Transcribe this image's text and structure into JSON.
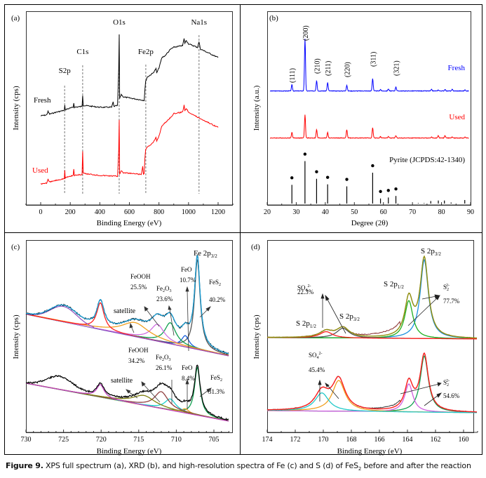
{
  "caption": {
    "label": "Figure 9.",
    "text_before_sub": " XPS full spectrum (a), XRD (b), and high-resolution spectra of Fe (c) and S (d) of FeS",
    "sub": "2",
    "text_after_sub": " before and after the reaction"
  },
  "colors": {
    "fresh_xps": "#000000",
    "used_xps": "#ff0000",
    "fresh_xrd": "#0000ff",
    "used_xrd": "#ff0000",
    "reference": "#000000"
  },
  "chart_data": [
    {
      "panel": "(a)",
      "type": "line",
      "title": "",
      "xlabel": "Binding Energy (eV)",
      "ylabel": "Intensity (cps)",
      "xlim": [
        -100,
        1300
      ],
      "xticks": [
        0,
        200,
        400,
        600,
        800,
        1000,
        1200
      ],
      "grid": false,
      "reference_lines": [
        {
          "label": "S2p",
          "x": 162
        },
        {
          "label": "C1s",
          "x": 284
        },
        {
          "label": "O1s",
          "x": 531
        },
        {
          "label": "Fe2p",
          "x": 711
        },
        {
          "label": "Na1s",
          "x": 1071
        }
      ],
      "series": [
        {
          "name": "Fresh",
          "color": "#000000",
          "x": [
            0,
            40,
            50,
            60,
            100,
            150,
            160,
            163,
            166,
            180,
            220,
            224,
            228,
            280,
            284,
            288,
            300,
            400,
            480,
            490,
            495,
            520,
            528,
            531,
            534,
            545,
            560,
            700,
            705,
            710,
            720,
            760,
            780,
            785,
            800,
            820,
            840,
            880,
            900,
            960,
            970,
            975,
            985,
            1000,
            1060,
            1071,
            1080,
            1200
          ],
          "y": [
            0.0,
            0.01,
            0.05,
            0.02,
            0.04,
            0.06,
            0.06,
            0.13,
            0.07,
            0.08,
            0.1,
            0.15,
            0.1,
            0.11,
            0.24,
            0.12,
            0.12,
            0.1,
            0.1,
            0.16,
            0.11,
            0.12,
            0.55,
            0.95,
            0.2,
            0.25,
            0.22,
            0.18,
            0.3,
            0.4,
            0.45,
            0.5,
            0.55,
            0.5,
            0.56,
            0.68,
            0.7,
            0.78,
            0.8,
            0.82,
            0.9,
            0.85,
            0.88,
            0.84,
            0.8,
            0.86,
            0.78,
            0.68
          ]
        },
        {
          "name": "Used",
          "color": "#ff0000",
          "x": [
            0,
            40,
            50,
            60,
            100,
            150,
            160,
            163,
            166,
            180,
            220,
            224,
            228,
            280,
            284,
            288,
            300,
            400,
            520,
            528,
            531,
            534,
            545,
            560,
            680,
            690,
            695,
            700,
            705,
            710,
            720,
            760,
            780,
            785,
            800,
            820,
            840,
            880,
            900,
            960,
            970,
            975,
            985,
            1000,
            1060,
            1200
          ],
          "y": [
            0.0,
            0.01,
            0.05,
            0.02,
            0.04,
            0.06,
            0.06,
            0.16,
            0.07,
            0.08,
            0.1,
            0.17,
            0.1,
            0.11,
            0.38,
            0.12,
            0.12,
            0.1,
            0.09,
            0.4,
            0.75,
            0.12,
            0.15,
            0.13,
            0.11,
            0.2,
            0.11,
            0.12,
            0.3,
            0.4,
            0.43,
            0.48,
            0.54,
            0.5,
            0.56,
            0.68,
            0.71,
            0.78,
            0.82,
            0.84,
            0.92,
            0.86,
            0.88,
            0.84,
            0.78,
            0.66
          ]
        }
      ]
    },
    {
      "panel": "(b)",
      "type": "line",
      "title": "",
      "xlabel": "Degree (2θ)",
      "ylabel": "Intensity (a.u.)",
      "xlim": [
        20,
        90
      ],
      "xticks": [
        20,
        30,
        40,
        50,
        60,
        70,
        80,
        90
      ],
      "grid": false,
      "peak_labels": [
        {
          "label": "(111)",
          "x": 28.5
        },
        {
          "label": "(200)",
          "x": 33.0
        },
        {
          "label": "(210)",
          "x": 37.0
        },
        {
          "label": "(211)",
          "x": 40.8
        },
        {
          "label": "(220)",
          "x": 47.4
        },
        {
          "label": "(311)",
          "x": 56.3
        },
        {
          "label": "(321)",
          "x": 64.3
        }
      ],
      "series": [
        {
          "name": "Fresh",
          "color": "#0000ff",
          "peaks_x": [
            28.5,
            33.0,
            37.0,
            40.8,
            47.4,
            56.3,
            59.0,
            61.7,
            64.3,
            76.6,
            78.9,
            81.2,
            83.7,
            88.1
          ],
          "peaks_intensity": [
            0.12,
            1.0,
            0.2,
            0.16,
            0.11,
            0.24,
            0.03,
            0.04,
            0.08,
            0.03,
            0.02,
            0.03,
            0.03,
            0.02
          ]
        },
        {
          "name": "Used",
          "color": "#ff0000",
          "peaks_x": [
            28.5,
            33.0,
            37.0,
            40.8,
            47.4,
            56.3,
            59.0,
            61.7,
            64.3,
            76.6,
            78.9,
            81.2,
            83.7,
            88.1
          ],
          "peaks_intensity": [
            0.12,
            0.5,
            0.18,
            0.12,
            0.18,
            0.22,
            0.03,
            0.03,
            0.05,
            0.02,
            0.05,
            0.05,
            0.02,
            0.02
          ]
        }
      ],
      "reference": {
        "name": "Pyrite (JCPDS:42-1340)",
        "lines_x": [
          28.5,
          33.0,
          37.0,
          40.8,
          47.4,
          56.3,
          59.0,
          61.7,
          64.3,
          72.0,
          74.0,
          76.3,
          78.9,
          81.0,
          83.3,
          88.0
        ],
        "lines_intensity": [
          0.37,
          0.84,
          0.49,
          0.38,
          0.34,
          0.61,
          0.1,
          0.12,
          0.15,
          0.01,
          0.01,
          0.05,
          0.06,
          0.06,
          0.02,
          0.07
        ],
        "marked": [
          true,
          true,
          true,
          true,
          true,
          true,
          true,
          true,
          true,
          false,
          false,
          false,
          false,
          false,
          false,
          false
        ]
      }
    },
    {
      "panel": "(c)",
      "type": "line",
      "title": "Fe 2p3/2",
      "xlabel": "Binding Energy (eV)",
      "ylabel": "Intensity (cps)",
      "xlim": [
        730,
        703
      ],
      "xticks": [
        730,
        725,
        720,
        715,
        710,
        705
      ],
      "grid": false,
      "series": [
        {
          "name": "Fresh",
          "components": [
            {
              "label": "FeS2",
              "percent": "40.2%",
              "center": 707.2,
              "color": "#555555"
            },
            {
              "label": "FeO",
              "percent": "10.7%",
              "center": 708.8,
              "color": "#1a5fdc"
            },
            {
              "label": "Fe2O3",
              "percent": "23.6%",
              "center": 710.8,
              "color": "#10a050"
            },
            {
              "label": "FeOOH",
              "percent": "25.5%",
              "center": 712.5,
              "color": "#d070e0"
            },
            {
              "label": "satellite",
              "percent": "",
              "center": 715.5,
              "color": "#f0a020"
            },
            {
              "label": "Fe 2p1/2",
              "percent": "",
              "center": 720.1,
              "color": "#ff2020"
            }
          ],
          "envelope_color": "#1aa0d8",
          "raw_color": "#000000"
        },
        {
          "name": "Used",
          "components": [
            {
              "label": "FeS2",
              "percent": "31.3%",
              "center": 707.2,
              "color": "#10a050"
            },
            {
              "label": "FeO",
              "percent": "8.4%",
              "center": 708.8,
              "color": "#f0a020"
            },
            {
              "label": "Fe2O3",
              "percent": "26.1%",
              "center": 710.8,
              "color": "#20d0d0"
            },
            {
              "label": "FeOOH",
              "percent": "34.2%",
              "center": 712.0,
              "color": "#904040"
            },
            {
              "label": "satellite",
              "percent": "",
              "center": 714.3,
              "color": "#808010"
            },
            {
              "label": "Fe 2p1/2",
              "percent": "",
              "center": 720.1,
              "color": "#c040c0"
            }
          ],
          "envelope_color": "#000000",
          "raw_color": "#000000"
        }
      ],
      "annotations": [
        "Fe 2p3/2",
        "FeOOH 25.5%",
        "Fe2O3 23.6%",
        "FeO 10.7%",
        "FeS2 40.2%",
        "satellite",
        "FeOOH 34.2%",
        "Fe2O3 26.1%",
        "FeO 8.4%",
        "FeS2 31.3%",
        "satellite"
      ]
    },
    {
      "panel": "(d)",
      "type": "line",
      "title": "",
      "xlabel": "Binding Energy (eV)",
      "ylabel": "Intensity (cps)",
      "xlim": [
        174,
        159
      ],
      "xticks": [
        174,
        172,
        170,
        168,
        166,
        164,
        162,
        160
      ],
      "grid": false,
      "series": [
        {
          "name": "Fresh",
          "components": [
            {
              "label": "S2 2- S 2p3/2",
              "center": 162.8,
              "color": "#1a90e0"
            },
            {
              "label": "S2 2- S 2p1/2",
              "center": 163.9,
              "color": "#20b020"
            },
            {
              "label": "SO4 2- S 2p3/2",
              "center": 168.6,
              "color": "#555555"
            },
            {
              "label": "SO4 2- S 2p1/2",
              "center": 169.8,
              "color": "#ff2020"
            }
          ],
          "percents": {
            "SO4 2-": "22.3%",
            "S2 2-": "77.7%"
          },
          "envelope_color": "#909010",
          "raw_color": "#8a3030"
        },
        {
          "name": "Used",
          "components": [
            {
              "label": "S2 2- S 2p3/2",
              "center": 162.8,
              "color": "#10a050"
            },
            {
              "label": "S2 2- S 2p1/2",
              "center": 163.9,
              "color": "#d060e0"
            },
            {
              "label": "SO4 2- S 2p3/2",
              "center": 168.9,
              "color": "#f0a020"
            },
            {
              "label": "SO4 2- S 2p1/2",
              "center": 170.1,
              "color": "#20c8c8"
            }
          ],
          "percents": {
            "SO4 2-": "45.4%",
            "S2 2-": "54.6%"
          },
          "envelope_color": "#ff2020",
          "raw_color": "#333333"
        }
      ],
      "annotations": [
        "S 2p3/2",
        "S 2p1/2",
        "SO4 2- 22.3%",
        "S 2p1/2",
        "S 2p3/2",
        "S2 2- 77.7%",
        "SO4 2- 45.4%",
        "S2 2- 54.6%"
      ]
    }
  ],
  "labels": {
    "a": {
      "panel": "(a)",
      "fresh": "Fresh",
      "used": "Used",
      "ylabel": "Intensity (cps)",
      "xlabel": "Binding Energy (eV)"
    },
    "b": {
      "panel": "(b)",
      "fresh": "Fresh",
      "used": "Used",
      "ref": "Pyrite (JCPDS:42-1340)",
      "ylabel": "Intensity (a.u.)",
      "xlabel": "Degree (2θ)"
    },
    "c": {
      "panel": "(c)",
      "title_main": "Fe 2p",
      "title_sub": "3/2",
      "ylabel": "Intensity (cps)",
      "xlabel": "Binding Energy (eV)",
      "fresh": {
        "feooh": "FeOOH",
        "feooh_pct": "25.5%",
        "fe2o3": "Fe",
        "fe2o3_pct": "23.6%",
        "feo": "FeO",
        "feo_pct": "10.7%",
        "fes2": "FeS",
        "fes2_pct": "40.2%",
        "sat": "satellite"
      },
      "used": {
        "feooh": "FeOOH",
        "feooh_pct": "34.2%",
        "fe2o3": "Fe",
        "fe2o3_pct": "26.1%",
        "feo": "FeO",
        "feo_pct": "8.4%",
        "fes2": "FeS",
        "fes2_pct": "31.3%",
        "sat": "satellite"
      }
    },
    "d": {
      "panel": "(d)",
      "ylabel": "Intensity (cps)",
      "xlabel": "Binding Energy (eV)",
      "s2p32": "S 2p",
      "s2p12": "S 2p",
      "fresh": {
        "so4_pct": "22.3%",
        "s2_pct": "77.7%"
      },
      "used": {
        "so4_pct": "45.4%",
        "s2_pct": "54.6%"
      }
    }
  }
}
